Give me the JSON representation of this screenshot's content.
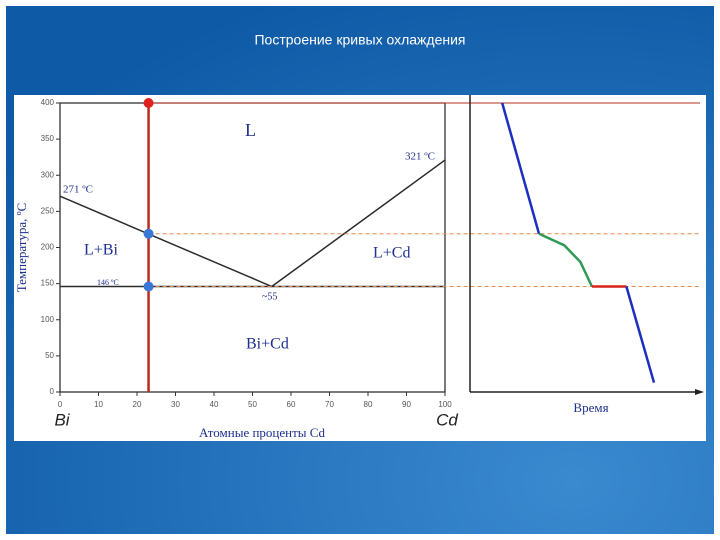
{
  "slide_title": "Построение кривых охлаждения",
  "chart_data": [
    {
      "type": "line",
      "ylabel": "Температура, ºC",
      "xlabel": "Атомные проценты Cd",
      "x_end_labels": [
        "Bi",
        "Cd"
      ],
      "xlim": [
        0,
        100
      ],
      "xticks": [
        0,
        10,
        20,
        30,
        40,
        50,
        60,
        70,
        80,
        90,
        100
      ],
      "ylim": [
        0,
        400
      ],
      "yticks": [
        0,
        50,
        100,
        150,
        200,
        250,
        300,
        350,
        400
      ],
      "annotations": [
        "L",
        "321 ºC",
        "271 ºC",
        "L+Bi",
        "L+Cd",
        "146 ºC",
        "~55",
        "Bi+Cd"
      ],
      "series": [
        {
          "color": "#2b2b2b",
          "x": [
            0,
            55,
            100
          ],
          "values": [
            271,
            146,
            321
          ]
        },
        {
          "color": "#2b2b2b",
          "x": [
            0,
            100
          ],
          "values": [
            146,
            146
          ]
        },
        {
          "color": "#c0281c",
          "x": [
            23,
            23
          ],
          "values": [
            0,
            400
          ]
        }
      ],
      "points": [
        {
          "x": 23,
          "value": 400,
          "color": "#e0201c",
          "guide_color": "#b5301f",
          "guide_dashed": false
        },
        {
          "x": 23,
          "value": 219,
          "color": "#3a78d8",
          "guide_color": "#e8874a",
          "guide_dashed": true
        },
        {
          "x": 23,
          "value": 146,
          "color": "#3a78d8",
          "guide_color": "#e8874a",
          "guide_dashed": true
        }
      ]
    },
    {
      "type": "line",
      "xlabel": "Время",
      "xlim": [
        0,
        100
      ],
      "ylim": [
        0,
        400
      ],
      "series": [
        {
          "color": "#1c2fc0",
          "x": [
            14,
            30
          ],
          "values": [
            400,
            219
          ]
        },
        {
          "color": "#2e9a55",
          "x": [
            30,
            41,
            48,
            53
          ],
          "values": [
            219,
            203,
            180,
            146
          ]
        },
        {
          "color": "#d8241c",
          "x": [
            53,
            68
          ],
          "values": [
            146,
            146
          ]
        },
        {
          "color": "#1c2fc0",
          "x": [
            68,
            80
          ],
          "values": [
            146,
            13
          ]
        }
      ]
    }
  ]
}
